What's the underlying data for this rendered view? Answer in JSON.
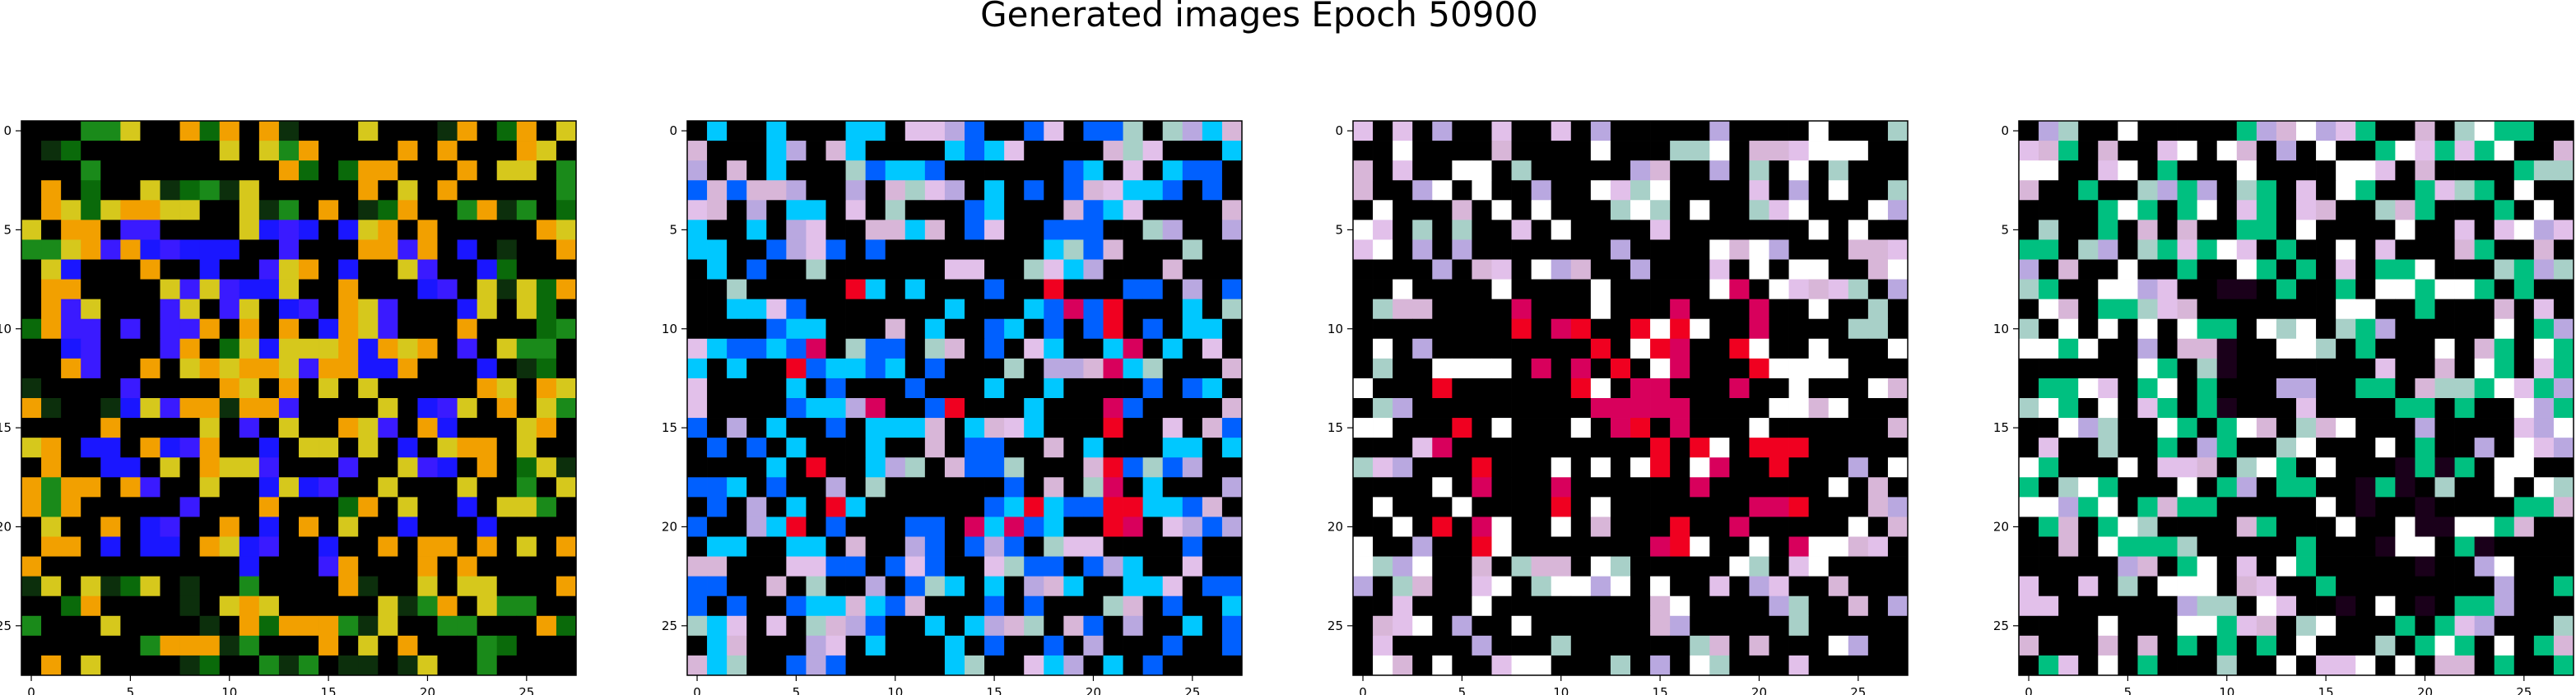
{
  "page": {
    "title": "Generated images Epoch 50900"
  },
  "chart_data": {
    "type": "heatmap",
    "title": "Generated images Epoch 50900",
    "image_size": 28,
    "x_ticks": [
      0,
      5,
      10,
      15,
      20,
      25
    ],
    "y_ticks": [
      0,
      5,
      10,
      15,
      20,
      25
    ],
    "panels": [
      {
        "id": "panel-1",
        "background": "#0b3f0b",
        "noise": [
          "#0a6a0a",
          "#1a8a1a",
          "#0c2f0c",
          "#114f11",
          "#22a022",
          "#0e4a0e"
        ],
        "accent": [
          "#1a16ff",
          "#3a1aff",
          "#2c00e0",
          "#4422ff"
        ],
        "highlights": [
          "#d6c81c",
          "#f2a000",
          "#ffbfdf",
          "#9fd41f"
        ]
      },
      {
        "id": "panel-2",
        "background": "#b7a6c6",
        "noise": [
          "#d8b6d8",
          "#a8d0c8",
          "#b9a8e0",
          "#e2c0ea",
          "#9fc7c2",
          "#c7a2d6",
          "#8fa0cc",
          "#e7d6e8"
        ],
        "accent": [
          "#f00020",
          "#d8005c",
          "#ff0018",
          "#b8002e"
        ],
        "highlights": [
          "#0060ff",
          "#00c8ff",
          "#000000",
          "#ffffff"
        ]
      },
      {
        "id": "panel-3",
        "background": "#b7a6c6",
        "noise": [
          "#d8b6d8",
          "#a8d0c8",
          "#b9a8e0",
          "#e2c0ea",
          "#9fc7c2",
          "#c7a2d6",
          "#8fa0cc",
          "#e7d6e8"
        ],
        "accent": [
          "#f00020",
          "#d8005c",
          "#ff0018",
          "#a40f2a"
        ],
        "highlights": [
          "#000000",
          "#ffffff",
          "#7ad7ff",
          "#6b0010"
        ]
      },
      {
        "id": "panel-4",
        "background": "#b7a6c6",
        "noise": [
          "#d8b6d8",
          "#a8d0c8",
          "#b9a8e0",
          "#e2c0ea",
          "#9fc7c2",
          "#c7a2d6",
          "#8fa0cc",
          "#e7d6e8"
        ],
        "accent": [
          "#1a001a",
          "#000000",
          "#6b0010",
          "#2a0020"
        ],
        "highlights": [
          "#ffffff",
          "#00c080",
          "#ff3366",
          "#f0c0d8"
        ]
      }
    ]
  }
}
